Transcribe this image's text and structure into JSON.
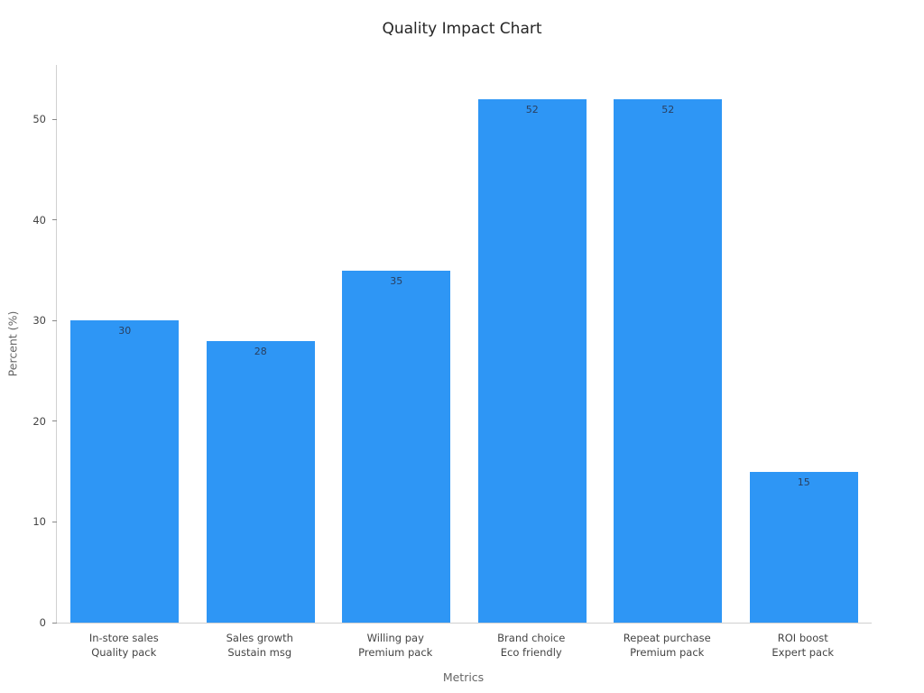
{
  "title": "Quality Impact Chart",
  "chart_data": {
    "type": "bar",
    "title": "Quality Impact Chart",
    "xlabel": "Metrics",
    "ylabel": "Percent (%)",
    "categories": [
      "In-store sales\nQuality pack",
      "Sales growth\nSustain msg",
      "Willing pay\nPremium pack",
      "Brand choice\nEco friendly",
      "Repeat purchase\nPremium pack",
      "ROI boost\nExpert pack"
    ],
    "values": [
      30,
      28,
      35,
      52,
      52,
      15
    ],
    "ylim": [
      0,
      55.4
    ],
    "yticks": [
      0,
      10,
      20,
      30,
      40,
      50
    ],
    "grid": false,
    "legend_position": "none",
    "bar_color": "#2E96F5",
    "value_label_color": "#2a3f5f",
    "value_label_position": "inside-top"
  }
}
